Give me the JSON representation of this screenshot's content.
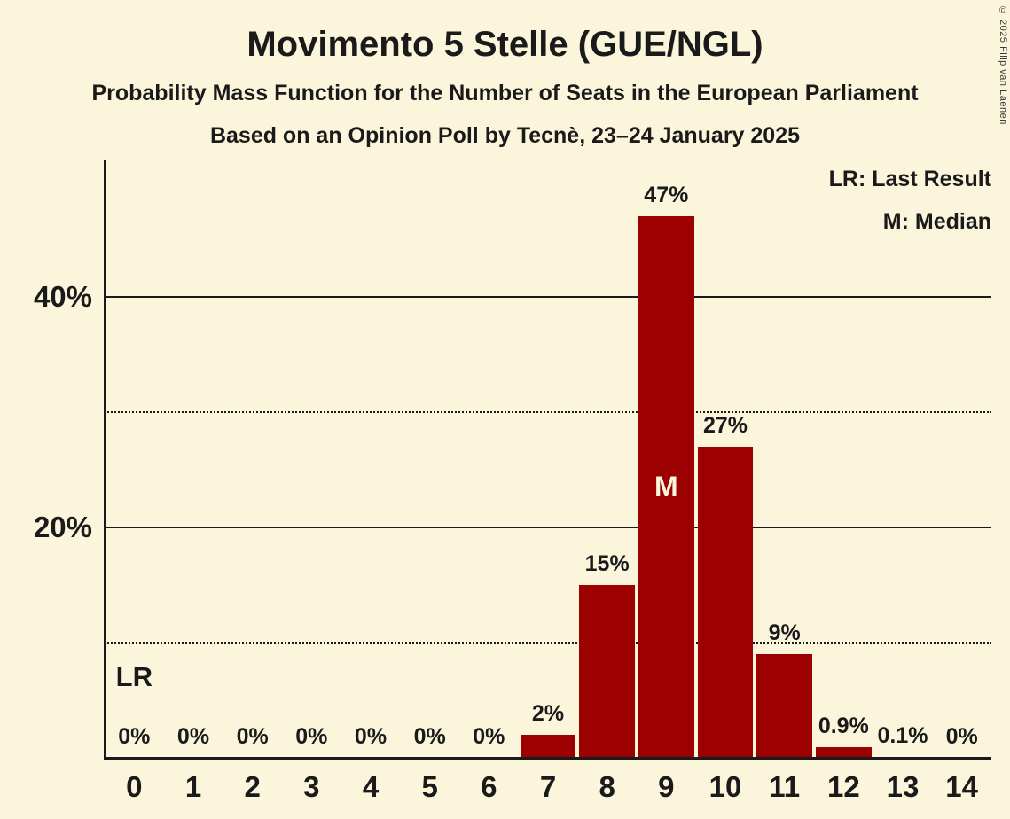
{
  "title": "Movimento 5 Stelle (GUE/NGL)",
  "subtitle1": "Probability Mass Function for the Number of Seats in the European Parliament",
  "subtitle2": "Based on an Opinion Poll by Tecnè, 23–24 January 2025",
  "legend": {
    "lr": "LR: Last Result",
    "m": "M: Median"
  },
  "copyright": "© 2025 Filip van Laenen",
  "chart_data": {
    "type": "bar",
    "title": "Movimento 5 Stelle (GUE/NGL)",
    "xlabel": "Number of Seats in the European Parliament",
    "ylabel": "Probability",
    "categories": [
      "0",
      "1",
      "2",
      "3",
      "4",
      "5",
      "6",
      "7",
      "8",
      "9",
      "10",
      "11",
      "12",
      "13",
      "14"
    ],
    "values": [
      0,
      0,
      0,
      0,
      0,
      0,
      0,
      2,
      15,
      47,
      27,
      9,
      0.9,
      0.1,
      0
    ],
    "labels": [
      "0%",
      "0%",
      "0%",
      "0%",
      "0%",
      "0%",
      "0%",
      "2%",
      "15%",
      "47%",
      "27%",
      "9%",
      "0.9%",
      "0.1%",
      "0%"
    ],
    "ylim": [
      0,
      52
    ],
    "yticks": [
      {
        "value": 20,
        "label": "20%"
      },
      {
        "value": 40,
        "label": "40%"
      }
    ],
    "gridlines_solid": [
      20,
      40
    ],
    "gridlines_dotted": [
      10,
      30
    ],
    "bar_color": "#9d0000",
    "background_color": "#fbf5dc",
    "median_index": 9,
    "median_marker": "M",
    "last_result_index": 0,
    "last_result_marker": "LR",
    "legend_position": "top-right",
    "grid": true
  }
}
